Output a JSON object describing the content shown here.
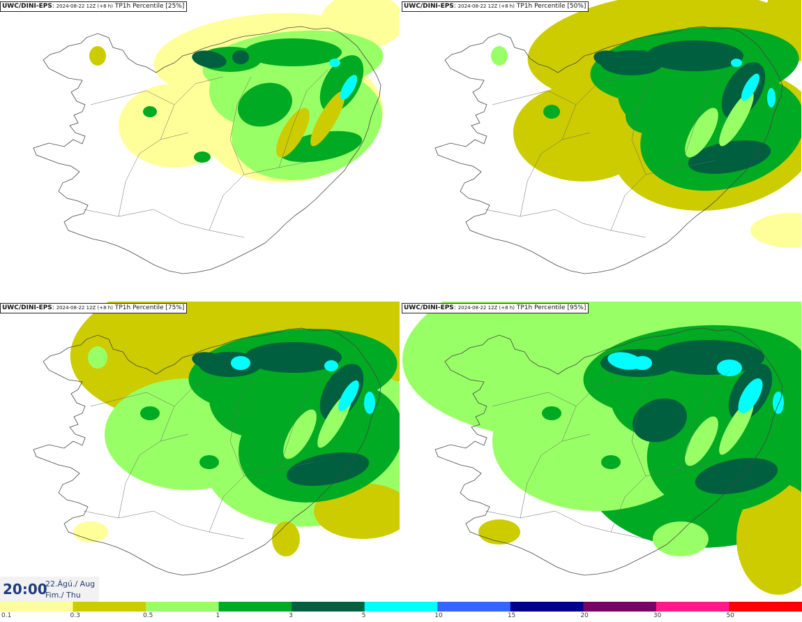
{
  "panels": [
    {
      "id": "p25",
      "model": "UWC/DINI-EPS",
      "run": "2024-08-22 12Z (+8 h)",
      "field": "TP1h Percentile [25%]",
      "percentile": 25
    },
    {
      "id": "p50",
      "model": "UWC/DINI-EPS",
      "run": "2024-08-22 12Z (+8 h)",
      "field": "TP1h Percentile [50%]",
      "percentile": 50
    },
    {
      "id": "p75",
      "model": "UWC/DINI-EPS",
      "run": "2024-08-22 12Z (+8 h)",
      "field": "TP1h Percentile [75%]",
      "percentile": 75
    },
    {
      "id": "p95",
      "model": "UWC/DINI-EPS",
      "run": "2024-08-22 12Z (+8 h)",
      "field": "TP1h Percentile [95%]",
      "percentile": 95
    }
  ],
  "valid_time": {
    "time": "20:00",
    "date_line1": "22.Ágú./ Aug",
    "date_line2": "Fim./ Thu"
  },
  "color_scale": {
    "ticks": [
      "0.1",
      "0.3",
      "0.5",
      "1",
      "3",
      "5",
      "10",
      "15",
      "20",
      "30",
      "50"
    ],
    "colors": [
      "#ffff99",
      "#cccc00",
      "#99ff66",
      "#00aa22",
      "#005f3f",
      "#00ffff",
      "#3366ff",
      "#000088",
      "#7a0066",
      "#ff1a8c",
      "#ff0000"
    ]
  }
}
